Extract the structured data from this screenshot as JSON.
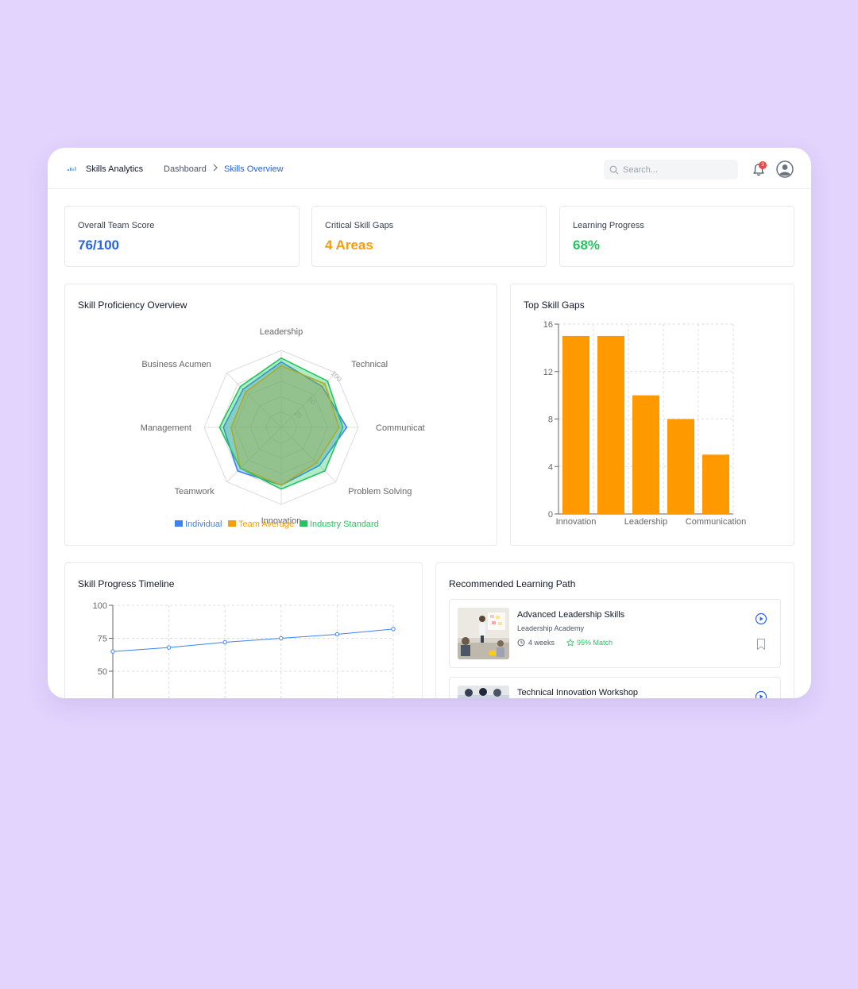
{
  "header": {
    "app_title": "Skills Analytics",
    "breadcrumb": [
      "Dashboard",
      "Skills Overview"
    ],
    "search_placeholder": "Search...",
    "notification_count": "3"
  },
  "stats": [
    {
      "label": "Overall Team Score",
      "value": "76/100",
      "color": "#2563eb"
    },
    {
      "label": "Critical Skill Gaps",
      "value": "4 Areas",
      "color": "#f59e0b"
    },
    {
      "label": "Learning Progress",
      "value": "68%",
      "color": "#22c55e"
    }
  ],
  "radar": {
    "title": "Skill Proficiency Overview",
    "axes": [
      "Leadership",
      "Technical",
      "Communicat",
      "Problem Solving",
      "Innovation",
      "Teamwork",
      "Management",
      "Business Acumen"
    ],
    "radial_ticks": [
      "25",
      "50",
      "100"
    ],
    "legend": [
      "Individual",
      "Team Average",
      "Industry Standard"
    ],
    "chart_data": {
      "type": "radar",
      "categories": [
        "Leadership",
        "Technical",
        "Communication",
        "Problem Solving",
        "Innovation",
        "Teamwork",
        "Management",
        "Business Acumen"
      ],
      "max": 100,
      "series": [
        {
          "name": "Individual",
          "color": "#3b82f6",
          "values": [
            85,
            75,
            85,
            70,
            75,
            80,
            75,
            70
          ]
        },
        {
          "name": "Team Average",
          "color": "#f59e0b",
          "values": [
            80,
            80,
            75,
            65,
            75,
            75,
            65,
            65
          ]
        },
        {
          "name": "Industry Standard",
          "color": "#22c55e",
          "values": [
            90,
            85,
            80,
            80,
            80,
            75,
            80,
            75
          ]
        }
      ]
    }
  },
  "gaps": {
    "title": "Top Skill Gaps",
    "x_labels": [
      "Innovation",
      "Leadership",
      "Communication"
    ],
    "chart_data": {
      "type": "bar",
      "values": [
        15,
        15,
        10,
        8,
        5
      ],
      "color": "#ff9900",
      "ylim": [
        0,
        16
      ],
      "yticks": [
        0,
        4,
        8,
        12,
        16
      ]
    }
  },
  "timeline": {
    "title": "Skill Progress Timeline",
    "chart_data": {
      "type": "line",
      "values": [
        65,
        68,
        72,
        75,
        78,
        82
      ],
      "color": "#3b82f6",
      "yticks": [
        50,
        75,
        100
      ],
      "ymax": 100
    }
  },
  "learning": {
    "title": "Recommended Learning Path",
    "courses": [
      {
        "title": "Advanced Leadership Skills",
        "provider": "Leadership Academy",
        "duration": "4 weeks",
        "match": "95% Match"
      },
      {
        "title": "Technical Innovation Workshop"
      }
    ]
  }
}
